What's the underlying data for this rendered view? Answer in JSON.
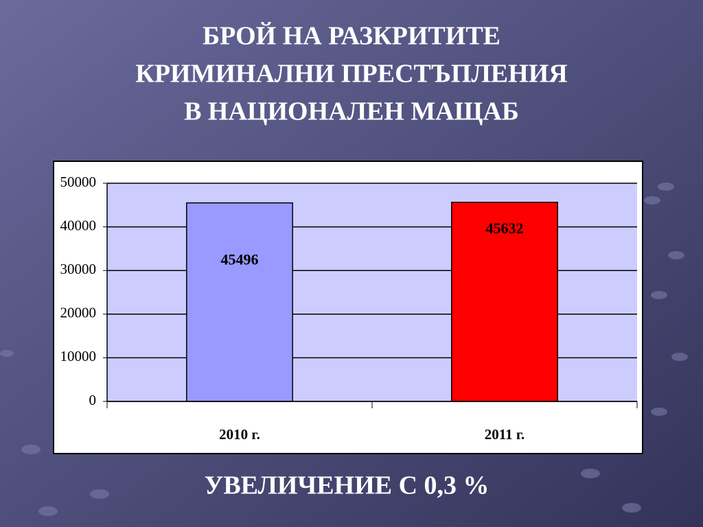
{
  "chart_data": {
    "type": "bar",
    "title": [
      "БРОЙ НА РАЗКРИТИТЕ",
      "КРИМИНАЛНИ ПРЕСТЪПЛЕНИЯ",
      "В НАЦИОНАЛЕН МАЩАБ"
    ],
    "categories": [
      "2010 г.",
      "2011 г."
    ],
    "values": [
      45496,
      45632
    ],
    "colors": [
      "#9999ff",
      "#ff0000"
    ],
    "ylim": [
      0,
      50000
    ],
    "yticks": [
      0,
      10000,
      20000,
      30000,
      40000,
      50000
    ],
    "grid": true,
    "annotation": "УВЕЛИЧЕНИЕ С 0,3 %"
  }
}
